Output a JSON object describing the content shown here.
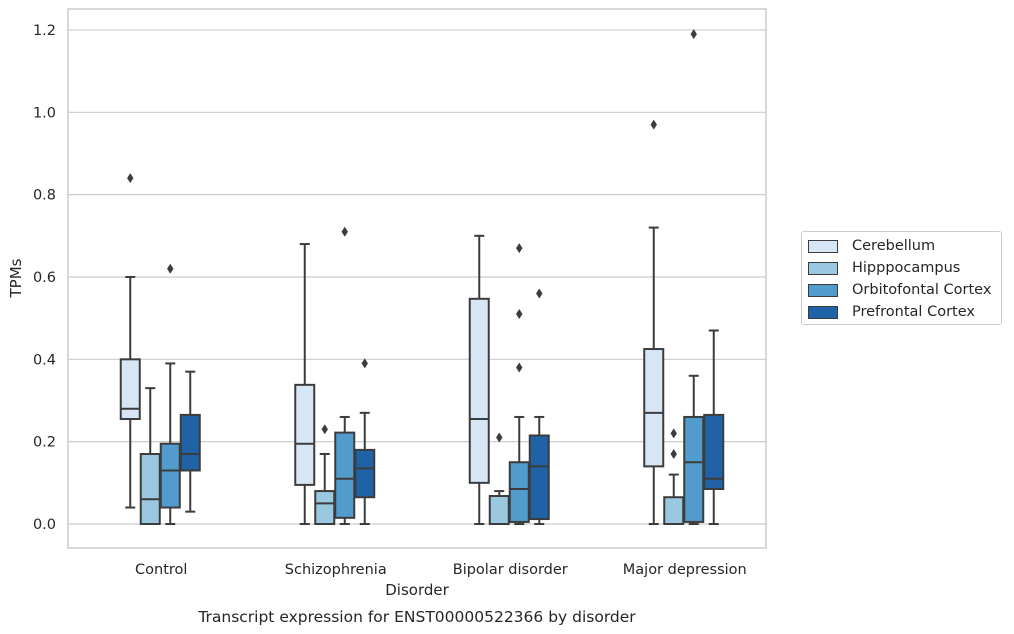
{
  "chart_data": {
    "type": "box",
    "title": "",
    "caption": "Transcript expression for ENST00000522366 by disorder",
    "xlabel": "Disorder",
    "ylabel": "TPMs",
    "ylim": [
      -0.057,
      1.252
    ],
    "yticks": [
      "0.0",
      "0.2",
      "0.4",
      "0.6",
      "0.8",
      "1.0",
      "1.2"
    ],
    "ytick_values": [
      0,
      0.2,
      0.4,
      0.6,
      0.8,
      1.0,
      1.2
    ],
    "grid": "horizontal",
    "legend_position": "right",
    "categories": [
      "Control",
      "Schizophrenia",
      "Bipolar disorder",
      "Major depression"
    ],
    "series": [
      {
        "name": "Cerebellum",
        "color": "#d6e6f4",
        "boxes": [
          {
            "whislo": 0.04,
            "q1": 0.255,
            "med": 0.28,
            "q3": 0.4,
            "whishi": 0.6,
            "fliers": [
              0.84
            ]
          },
          {
            "whislo": 0.0,
            "q1": 0.095,
            "med": 0.195,
            "q3": 0.338,
            "whishi": 0.68,
            "fliers": []
          },
          {
            "whislo": 0.0,
            "q1": 0.1,
            "med": 0.255,
            "q3": 0.547,
            "whishi": 0.7,
            "fliers": []
          },
          {
            "whislo": 0.0,
            "q1": 0.14,
            "med": 0.27,
            "q3": 0.425,
            "whishi": 0.72,
            "fliers": [
              0.97
            ]
          }
        ]
      },
      {
        "name": "Hipppocampus",
        "color": "#9ac8e0",
        "boxes": [
          {
            "whislo": 0.0,
            "q1": 0.0,
            "med": 0.06,
            "q3": 0.17,
            "whishi": 0.33,
            "fliers": []
          },
          {
            "whislo": 0.0,
            "q1": 0.0,
            "med": 0.05,
            "q3": 0.08,
            "whishi": 0.17,
            "fliers": [
              0.23
            ]
          },
          {
            "whislo": 0.0,
            "q1": 0.0,
            "med": 0.0,
            "q3": 0.068,
            "whishi": 0.08,
            "fliers": [
              0.21
            ]
          },
          {
            "whislo": 0.0,
            "q1": 0.0,
            "med": 0.0,
            "q3": 0.065,
            "whishi": 0.12,
            "fliers": [
              0.17,
              0.22
            ]
          }
        ]
      },
      {
        "name": "Orbitofontal Cortex",
        "color": "#519ccc",
        "boxes": [
          {
            "whislo": 0.0,
            "q1": 0.04,
            "med": 0.13,
            "q3": 0.195,
            "whishi": 0.39,
            "fliers": [
              0.62
            ]
          },
          {
            "whislo": 0.0,
            "q1": 0.015,
            "med": 0.11,
            "q3": 0.222,
            "whishi": 0.26,
            "fliers": [
              0.71
            ]
          },
          {
            "whislo": 0.0,
            "q1": 0.005,
            "med": 0.085,
            "q3": 0.15,
            "whishi": 0.26,
            "fliers": [
              0.38,
              0.51,
              0.67
            ]
          },
          {
            "whislo": 0.0,
            "q1": 0.005,
            "med": 0.15,
            "q3": 0.26,
            "whishi": 0.36,
            "fliers": [
              1.19
            ]
          }
        ]
      },
      {
        "name": "Prefrontal Cortex",
        "color": "#1f62a6",
        "boxes": [
          {
            "whislo": 0.03,
            "q1": 0.13,
            "med": 0.17,
            "q3": 0.265,
            "whishi": 0.37,
            "fliers": []
          },
          {
            "whislo": 0.0,
            "q1": 0.065,
            "med": 0.135,
            "q3": 0.18,
            "whishi": 0.27,
            "fliers": [
              0.39
            ]
          },
          {
            "whislo": 0.0,
            "q1": 0.012,
            "med": 0.14,
            "q3": 0.215,
            "whishi": 0.26,
            "fliers": [
              0.56
            ]
          },
          {
            "whislo": 0.0,
            "q1": 0.085,
            "med": 0.11,
            "q3": 0.265,
            "whishi": 0.47,
            "fliers": []
          }
        ]
      }
    ]
  }
}
